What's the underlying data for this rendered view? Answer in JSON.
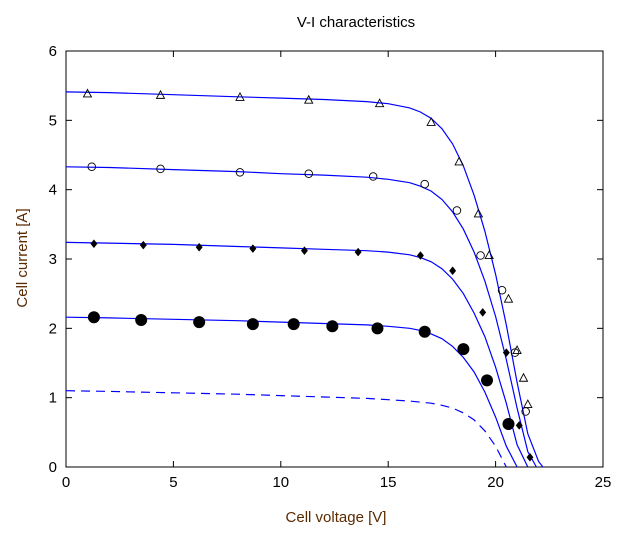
{
  "chart_data": {
    "type": "line",
    "title": "V-I characteristics",
    "xlabel": "Cell voltage [V]",
    "ylabel": "Cell current [A]",
    "xlim": [
      0,
      25
    ],
    "ylim": [
      0,
      6
    ],
    "xticks": [
      "0",
      "5",
      "10",
      "15",
      "20",
      "25"
    ],
    "yticks": [
      "0",
      "1",
      "2",
      "3",
      "4",
      "5",
      "6"
    ],
    "grid": false,
    "line_color": "#0000ff",
    "marker_color": "#000000",
    "series": [
      {
        "curve": {
          "x": [
            0,
            2,
            5,
            8,
            10,
            12,
            14,
            15,
            16,
            16.5,
            17,
            17.5,
            18,
            18.5,
            19,
            19.5,
            20,
            20.5,
            21,
            21.5,
            22,
            22.2
          ],
          "y": [
            5.41,
            5.4,
            5.37,
            5.34,
            5.32,
            5.3,
            5.27,
            5.24,
            5.18,
            5.12,
            5.03,
            4.88,
            4.66,
            4.34,
            3.92,
            3.4,
            2.78,
            2.05,
            1.22,
            0.48,
            0.08,
            0.0
          ]
        },
        "markers": {
          "shape": "triangle",
          "x": [
            1.0,
            4.4,
            8.1,
            11.3,
            14.6,
            17.0,
            18.3,
            19.2,
            19.7,
            20.6,
            21.0,
            21.3,
            21.5
          ],
          "y": [
            5.38,
            5.36,
            5.33,
            5.29,
            5.24,
            4.97,
            4.4,
            3.65,
            3.05,
            2.42,
            1.68,
            1.28,
            0.9
          ]
        }
      },
      {
        "curve": {
          "x": [
            0,
            2,
            5,
            8,
            10,
            12,
            14,
            15,
            16,
            16.5,
            17,
            17.5,
            18,
            18.5,
            19,
            19.5,
            20,
            20.5,
            21,
            21.5,
            21.9
          ],
          "y": [
            4.33,
            4.32,
            4.29,
            4.26,
            4.23,
            4.21,
            4.18,
            4.15,
            4.1,
            4.05,
            3.98,
            3.86,
            3.68,
            3.43,
            3.1,
            2.68,
            2.17,
            1.55,
            0.85,
            0.22,
            0.0
          ]
        },
        "markers": {
          "shape": "circle",
          "x": [
            1.2,
            4.4,
            8.1,
            11.3,
            14.3,
            16.7,
            18.2,
            19.3,
            20.3,
            20.9,
            21.4
          ],
          "y": [
            4.33,
            4.3,
            4.25,
            4.23,
            4.19,
            4.08,
            3.7,
            3.05,
            2.55,
            1.65,
            0.8
          ]
        }
      },
      {
        "curve": {
          "x": [
            0,
            2,
            5,
            8,
            10,
            12,
            14,
            15,
            16,
            16.5,
            17,
            17.5,
            18,
            18.5,
            19,
            19.5,
            20,
            20.5,
            21,
            21.5
          ],
          "y": [
            3.24,
            3.23,
            3.21,
            3.18,
            3.16,
            3.14,
            3.12,
            3.1,
            3.06,
            3.02,
            2.96,
            2.86,
            2.71,
            2.5,
            2.22,
            1.88,
            1.44,
            0.92,
            0.32,
            0.0
          ]
        },
        "markers": {
          "shape": "diamond",
          "x": [
            1.3,
            3.6,
            6.2,
            8.7,
            11.1,
            13.6,
            16.5,
            18.0,
            19.4,
            20.5,
            21.1,
            21.6
          ],
          "y": [
            3.22,
            3.2,
            3.17,
            3.15,
            3.12,
            3.1,
            3.05,
            2.83,
            2.23,
            1.65,
            0.6,
            0.14
          ]
        }
      },
      {
        "curve": {
          "x": [
            0,
            2,
            5,
            8,
            10,
            12,
            14,
            15,
            16,
            16.5,
            17,
            17.5,
            18,
            18.5,
            19,
            19.5,
            20,
            20.5,
            21
          ],
          "y": [
            2.16,
            2.15,
            2.13,
            2.11,
            2.09,
            2.07,
            2.05,
            2.03,
            2.0,
            1.97,
            1.92,
            1.85,
            1.74,
            1.58,
            1.37,
            1.08,
            0.72,
            0.3,
            0.0
          ]
        },
        "markers": {
          "shape": "filled-circle",
          "x": [
            1.3,
            3.5,
            6.2,
            8.7,
            10.6,
            12.4,
            14.5,
            16.7,
            18.5,
            19.6,
            20.6
          ],
          "y": [
            2.16,
            2.12,
            2.09,
            2.06,
            2.06,
            2.03,
            2.0,
            1.95,
            1.7,
            1.25,
            0.62
          ]
        }
      },
      {
        "dashed": true,
        "curve": {
          "x": [
            0,
            2,
            5,
            8,
            10,
            12,
            14,
            15,
            16,
            17,
            17.5,
            18,
            18.5,
            19,
            19.5,
            20,
            20.3,
            20.5
          ],
          "y": [
            1.1,
            1.09,
            1.07,
            1.05,
            1.03,
            1.01,
            0.99,
            0.97,
            0.95,
            0.92,
            0.89,
            0.85,
            0.78,
            0.68,
            0.52,
            0.3,
            0.12,
            0.0
          ]
        }
      }
    ]
  }
}
